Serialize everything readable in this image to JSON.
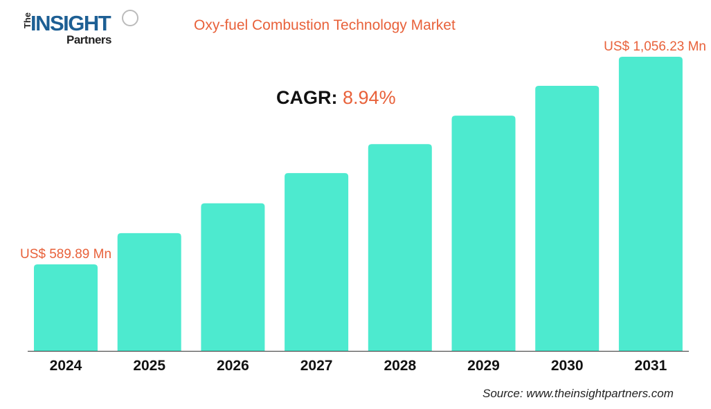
{
  "logo": {
    "text_the": "The",
    "text_main": "INSIGHT",
    "text_sub": "Partners"
  },
  "chart_data": {
    "type": "bar",
    "title": "Oxy-fuel Combustion Technology Market",
    "categories": [
      "2024",
      "2025",
      "2026",
      "2027",
      "2028",
      "2029",
      "2030",
      "2031"
    ],
    "values": [
      589.89,
      660,
      727,
      795,
      860,
      924,
      991,
      1056.23
    ],
    "data_labels": {
      "0": "US$ 589.89 Mn",
      "7": "US$ 1,056.23 Mn"
    },
    "unit": "US$ Mn",
    "cagr_label": "CAGR:",
    "cagr_value": "8.94%",
    "grid": false,
    "bar_color": "#4deacf",
    "label_color": "#e8613a"
  },
  "source": "Source: www.theinsightpartners.com"
}
